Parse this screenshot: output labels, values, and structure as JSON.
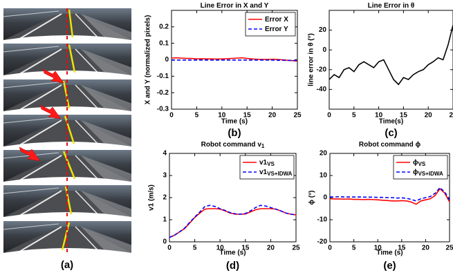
{
  "panel_a": {
    "label": "(a)"
  },
  "chart_data": [
    {
      "type": "line",
      "title": "Line Error in X and Y",
      "x_label": "Time (s)",
      "y_label": "X and Y (normalized pixels)",
      "label": "(b)",
      "x": [
        0,
        1,
        2,
        3,
        4,
        5,
        6,
        7,
        8,
        9,
        10,
        11,
        12,
        13,
        14,
        15,
        16,
        17,
        18,
        19,
        20,
        21,
        22,
        23,
        24,
        25
      ],
      "xlim": [
        0,
        25
      ],
      "xticks": [
        0,
        5,
        10,
        15,
        20,
        25
      ],
      "ylim": [
        -0.3,
        0.3
      ],
      "yticks": [
        -0.3,
        -0.2,
        -0.1,
        0,
        0.1,
        0.2
      ],
      "legend": "upper right",
      "series": [
        {
          "name": "Error X",
          "color": "#ff0000",
          "linestyle": "solid",
          "values": [
            0.01,
            0.012,
            0.01,
            0.008,
            0.008,
            0.005,
            0.006,
            0.005,
            0.005,
            0.004,
            0.005,
            0.006,
            0.008,
            0.01,
            0.012,
            0.008,
            0.005,
            0.003,
            0.002,
            0.002,
            0.003,
            0.002,
            0,
            -0.003,
            -0.005,
            -0.008
          ]
        },
        {
          "name": "Error Y",
          "color": "#0000ff",
          "linestyle": "dashed",
          "values": [
            -0.002,
            -0.002,
            -0.002,
            -0.002,
            -0.002,
            -0.002,
            -0.002,
            -0.002,
            -0.002,
            -0.002,
            -0.002,
            -0.002,
            -0.002,
            -0.002,
            -0.002,
            -0.002,
            -0.002,
            -0.002,
            -0.002,
            -0.002,
            -0.002,
            -0.003,
            -0.003,
            -0.004,
            -0.004,
            -0.005
          ]
        }
      ]
    },
    {
      "type": "line",
      "title": "Line Error in θ",
      "x_label": "Time(s)",
      "y_label": "line error in θ (°)",
      "label": "(c)",
      "x": [
        0,
        1,
        2,
        3,
        4,
        5,
        6,
        7,
        8,
        9,
        10,
        11,
        12,
        13,
        14,
        15,
        16,
        17,
        18,
        19,
        20,
        21,
        22,
        23,
        24,
        25
      ],
      "xlim": [
        0,
        25
      ],
      "xticks": [
        0,
        5,
        10,
        15,
        20,
        25
      ],
      "ylim": [
        -60,
        40
      ],
      "yticks": [
        -40,
        -20,
        0,
        20
      ],
      "series": [
        {
          "name": "θ",
          "show_in_legend": false,
          "color": "#000000",
          "linestyle": "solid",
          "values": [
            -30,
            -25,
            -28,
            -20,
            -18,
            -22,
            -15,
            -12,
            -15,
            -18,
            -12,
            -10,
            -20,
            -30,
            -35,
            -28,
            -30,
            -25,
            -22,
            -20,
            -15,
            -12,
            -8,
            -10,
            5,
            25
          ]
        }
      ]
    },
    {
      "type": "line",
      "title": "Robot command v",
      "title_subscript": "1",
      "x_label": "Time (s)",
      "y_label": "v1 (m/s)",
      "label": "(d)",
      "x": [
        0,
        1,
        2,
        3,
        4,
        5,
        6,
        7,
        8,
        9,
        10,
        11,
        12,
        13,
        14,
        15,
        16,
        17,
        18,
        19,
        20,
        21,
        22,
        23,
        24,
        25
      ],
      "xlim": [
        0,
        25
      ],
      "xticks": [
        0,
        5,
        10,
        15,
        20,
        25
      ],
      "ylim": [
        0,
        4
      ],
      "yticks": [
        0,
        1,
        2,
        3,
        4
      ],
      "legend": "upper right",
      "series": [
        {
          "name": "v1",
          "name_subscript": "VS",
          "color": "#ff0000",
          "linestyle": "solid",
          "values": [
            0.2,
            0.3,
            0.45,
            0.6,
            0.85,
            1.1,
            1.3,
            1.48,
            1.5,
            1.5,
            1.48,
            1.4,
            1.3,
            1.25,
            1.25,
            1.26,
            1.35,
            1.45,
            1.5,
            1.5,
            1.5,
            1.48,
            1.4,
            1.3,
            1.25,
            1.22
          ]
        },
        {
          "name": "v1",
          "name_subscript": "VS+IDWA",
          "color": "#0000ff",
          "linestyle": "dashed",
          "values": [
            0.2,
            0.3,
            0.45,
            0.62,
            0.88,
            1.12,
            1.35,
            1.6,
            1.65,
            1.6,
            1.5,
            1.42,
            1.32,
            1.27,
            1.25,
            1.28,
            1.4,
            1.55,
            1.65,
            1.62,
            1.55,
            1.48,
            1.4,
            1.3,
            1.25,
            1.22
          ]
        }
      ]
    },
    {
      "type": "line",
      "title": "Robot command ϕ",
      "x_label": "Time (s)",
      "y_label": "ϕ (°)",
      "label": "(e)",
      "x": [
        0,
        1,
        2,
        3,
        4,
        5,
        6,
        7,
        8,
        9,
        10,
        11,
        12,
        13,
        14,
        15,
        16,
        17,
        18,
        19,
        20,
        21,
        22,
        23,
        24,
        25
      ],
      "xlim": [
        0,
        25
      ],
      "xticks": [
        0,
        5,
        10,
        15,
        20,
        25
      ],
      "ylim": [
        -20,
        20
      ],
      "yticks": [
        -20,
        -10,
        0,
        10,
        20
      ],
      "legend": "upper right",
      "series": [
        {
          "name": "ϕ",
          "name_subscript": "VS",
          "color": "#ff0000",
          "linestyle": "solid",
          "values": [
            -0.5,
            -0.6,
            -0.6,
            -0.7,
            -0.6,
            -0.8,
            -0.8,
            -0.9,
            -0.8,
            -0.9,
            -1,
            -1.2,
            -1.3,
            -1.5,
            -1.5,
            -1.4,
            -1.5,
            -2,
            -3,
            -1.5,
            -1,
            -0.5,
            1,
            4,
            2,
            -2
          ]
        },
        {
          "name": "ϕ",
          "name_subscript": "VS+IDWA",
          "color": "#0000ff",
          "linestyle": "dashed",
          "values": [
            0.3,
            0.3,
            0.4,
            0.3,
            0.3,
            0.3,
            0.3,
            0.2,
            0.2,
            0.2,
            0.1,
            0.1,
            0,
            0,
            -0.2,
            -0.1,
            -0.3,
            -0.8,
            -1.5,
            -0.5,
            0,
            0.5,
            2,
            4.5,
            2.5,
            -1
          ]
        }
      ]
    }
  ]
}
